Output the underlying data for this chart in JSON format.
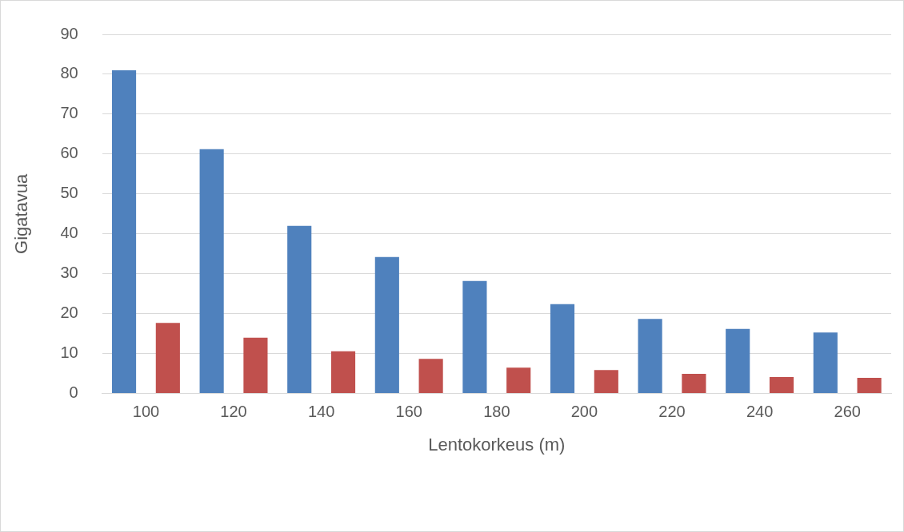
{
  "chart_data": {
    "type": "bar",
    "xlabel": "Lentokorkeus (m)",
    "ylabel": "Gigatavua",
    "categories": [
      "100",
      "120",
      "140",
      "160",
      "180",
      "200",
      "220",
      "240",
      "260"
    ],
    "series": [
      {
        "color": "#4f81bd",
        "values": [
          81,
          61.2,
          42,
          34.2,
          28.2,
          22.4,
          18.7,
          16.2,
          15.3
        ]
      },
      {
        "color": "#c0504d",
        "values": [
          17.7,
          14,
          10.6,
          8.7,
          6.5,
          5.9,
          4.9,
          4.1,
          3.9
        ]
      }
    ],
    "ylim": [
      0,
      90
    ],
    "yticks": [
      0,
      10,
      20,
      30,
      40,
      50,
      60,
      70,
      80,
      90
    ],
    "grid": "y",
    "legend": false
  }
}
